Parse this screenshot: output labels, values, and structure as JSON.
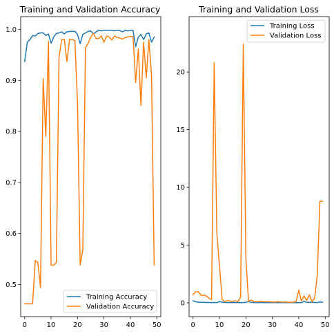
{
  "figure": {
    "background": "#ffffff"
  },
  "chart_data": [
    {
      "type": "line",
      "title": "Training and Validation Accuracy",
      "xlabel": "",
      "ylabel": "",
      "xlim": [
        -1.5,
        51.5
      ],
      "ylim": [
        0.437,
        1.025
      ],
      "xticks": [
        0,
        10,
        20,
        30,
        40,
        50
      ],
      "xtick_labels": [
        "0",
        "10",
        "20",
        "30",
        "40",
        "50"
      ],
      "yticks": [
        0.5,
        0.6,
        0.7,
        0.8,
        0.9,
        1.0
      ],
      "ytick_labels": [
        "0.5",
        "0.6",
        "0.7",
        "0.8",
        "0.9",
        "1.0"
      ],
      "grid": false,
      "legend": "lower-right",
      "x": [
        0,
        1,
        2,
        3,
        4,
        5,
        6,
        7,
        8,
        9,
        10,
        11,
        12,
        13,
        14,
        15,
        16,
        17,
        18,
        19,
        20,
        21,
        22,
        23,
        24,
        25,
        26,
        27,
        28,
        29,
        30,
        31,
        32,
        33,
        34,
        35,
        36,
        37,
        38,
        39,
        40,
        41,
        42,
        43,
        44,
        45,
        46,
        47,
        48,
        49
      ],
      "series": [
        {
          "name": "Training Accuracy",
          "color": "#1f77b4",
          "values": [
            0.937,
            0.975,
            0.98,
            0.988,
            0.987,
            0.992,
            0.993,
            0.993,
            0.988,
            0.991,
            0.973,
            0.985,
            0.992,
            0.993,
            0.995,
            0.991,
            0.995,
            0.996,
            0.996,
            0.996,
            0.99,
            0.972,
            0.99,
            0.993,
            0.996,
            0.997,
            0.991,
            0.995,
            0.998,
            0.997,
            0.998,
            0.998,
            0.998,
            0.998,
            0.997,
            0.998,
            0.998,
            0.995,
            0.998,
            0.997,
            0.998,
            0.998,
            0.966,
            0.985,
            0.99,
            0.98,
            0.991,
            0.993,
            0.975,
            0.985
          ]
        },
        {
          "name": "Validation Accuracy",
          "color": "#ff7f0e",
          "values": [
            0.462,
            0.462,
            0.462,
            0.462,
            0.547,
            0.543,
            0.494,
            0.903,
            0.79,
            0.976,
            0.538,
            0.538,
            0.543,
            0.945,
            0.98,
            0.98,
            0.937,
            0.981,
            0.98,
            0.978,
            0.856,
            0.538,
            0.568,
            0.964,
            0.972,
            0.985,
            0.992,
            0.982,
            0.982,
            0.987,
            0.975,
            0.987,
            0.985,
            0.979,
            0.987,
            0.984,
            0.983,
            0.981,
            0.984,
            0.985,
            0.986,
            0.986,
            0.896,
            0.962,
            0.851,
            0.975,
            0.905,
            0.98,
            0.91,
            0.538
          ]
        }
      ]
    },
    {
      "type": "line",
      "title": "Training and Validation Loss",
      "xlabel": "",
      "ylabel": "",
      "xlim": [
        -1.5,
        51.5
      ],
      "ylim": [
        -1.2,
        24.8
      ],
      "xticks": [
        0,
        10,
        20,
        30,
        40,
        50
      ],
      "xtick_labels": [
        "0",
        "10",
        "20",
        "30",
        "40",
        "50"
      ],
      "yticks": [
        0,
        5,
        10,
        15,
        20
      ],
      "ytick_labels": [
        "0",
        "5",
        "10",
        "15",
        "20"
      ],
      "grid": false,
      "legend": "top-right",
      "x": [
        0,
        1,
        2,
        3,
        4,
        5,
        6,
        7,
        8,
        9,
        10,
        11,
        12,
        13,
        14,
        15,
        16,
        17,
        18,
        19,
        20,
        21,
        22,
        23,
        24,
        25,
        26,
        27,
        28,
        29,
        30,
        31,
        32,
        33,
        34,
        35,
        36,
        37,
        38,
        39,
        40,
        41,
        42,
        43,
        44,
        45,
        46,
        47,
        48,
        49
      ],
      "series": [
        {
          "name": "Training Loss",
          "color": "#1f77b4",
          "values": [
            0.18,
            0.08,
            0.06,
            0.04,
            0.04,
            0.03,
            0.03,
            0.02,
            0.03,
            0.02,
            0.1,
            0.06,
            0.03,
            0.02,
            0.02,
            0.03,
            0.02,
            0.02,
            0.01,
            0.02,
            0.04,
            0.1,
            0.04,
            0.02,
            0.01,
            0.01,
            0.03,
            0.01,
            0.01,
            0.01,
            0.01,
            0.01,
            0.01,
            0.01,
            0.01,
            0.01,
            0.01,
            0.01,
            0.01,
            0.01,
            0.01,
            0.01,
            0.12,
            0.05,
            0.04,
            0.06,
            0.03,
            0.02,
            0.08,
            0.05
          ]
        },
        {
          "name": "Validation Loss",
          "color": "#ff7f0e",
          "values": [
            0.7,
            0.95,
            0.95,
            0.65,
            0.65,
            0.6,
            0.4,
            0.25,
            20.8,
            6.0,
            3.2,
            0.3,
            0.1,
            0.2,
            0.15,
            0.12,
            0.18,
            0.1,
            0.5,
            22.4,
            3.8,
            0.12,
            0.25,
            0.1,
            0.08,
            0.1,
            0.12,
            0.08,
            0.1,
            0.08,
            0.07,
            0.06,
            0.1,
            0.07,
            0.06,
            0.07,
            0.05,
            0.05,
            0.06,
            0.1,
            1.1,
            0.15,
            0.6,
            0.2,
            0.7,
            0.1,
            0.4,
            2.4,
            8.8,
            8.8
          ]
        }
      ]
    }
  ]
}
